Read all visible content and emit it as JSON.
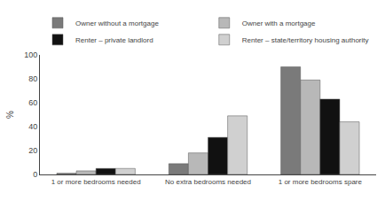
{
  "chart_data": {
    "type": "bar",
    "categories": [
      "1 or more bedrooms needed",
      "No extra bedrooms needed",
      "1 or more bedrooms spare"
    ],
    "series": [
      {
        "name": "Owner without a mortgage",
        "color": "#7a7a7a",
        "values": [
          1,
          9,
          90
        ]
      },
      {
        "name": "Owner with a mortgage",
        "color": "#b8b8b8",
        "values": [
          3,
          18,
          79
        ]
      },
      {
        "name": "Renter – private landlord",
        "color": "#111111",
        "values": [
          5,
          31,
          63
        ]
      },
      {
        "name": "Renter – state/territory housing authority",
        "color": "#d0d0d0",
        "values": [
          5,
          49,
          44
        ]
      }
    ],
    "ylabel": "%",
    "ylim": [
      0,
      100
    ],
    "yticks": [
      0,
      20,
      40,
      60,
      80,
      100
    ],
    "grid": false,
    "legend": "top"
  }
}
